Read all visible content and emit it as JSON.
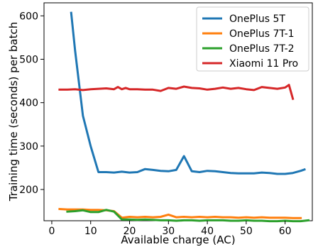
{
  "chart_data": {
    "type": "line",
    "xlabel": "Available charge (AC)",
    "ylabel": "Training time (seconds) per batch",
    "xlim": [
      -2,
      67
    ],
    "ylim": [
      128,
      630
    ],
    "xticks": [
      0,
      10,
      20,
      30,
      40,
      50,
      60
    ],
    "yticks": [
      200,
      300,
      400,
      500,
      600
    ],
    "grid": false,
    "legend_position": "top-right",
    "series": [
      {
        "name": "OnePlus 5T",
        "color": "#1f77b4",
        "x": [
          5,
          6,
          8,
          10,
          12,
          14,
          16,
          18,
          20,
          22,
          24,
          26,
          28,
          30,
          32,
          34,
          36,
          38,
          40,
          42,
          44,
          46,
          48,
          50,
          52,
          54,
          56,
          58,
          60,
          62,
          64,
          65
        ],
        "y": [
          607,
          520,
          370,
          300,
          240,
          240,
          239,
          241,
          239,
          240,
          247,
          245,
          243,
          242,
          245,
          277,
          242,
          240,
          243,
          242,
          240,
          238,
          237,
          237,
          237,
          239,
          238,
          236,
          236,
          238,
          243,
          246
        ]
      },
      {
        "name": "OnePlus 7T-1",
        "color": "#ff7f0e",
        "x": [
          2,
          4,
          6,
          8,
          10,
          12,
          14,
          16,
          18,
          20,
          22,
          24,
          26,
          28,
          30,
          32,
          34,
          36,
          38,
          40,
          42,
          44,
          46,
          48,
          50,
          52,
          54,
          56,
          58,
          60,
          62,
          64
        ],
        "y": [
          155,
          154,
          154,
          154,
          153,
          153,
          152,
          150,
          135,
          137,
          136,
          137,
          136,
          137,
          142,
          136,
          137,
          136,
          137,
          136,
          137,
          136,
          136,
          135,
          136,
          135,
          136,
          135,
          135,
          135,
          134,
          134
        ]
      },
      {
        "name": "OnePlus 7T-2",
        "color": "#2ca02c",
        "x": [
          4,
          6,
          8,
          10,
          12,
          14,
          16,
          17,
          18,
          20,
          22,
          24,
          26,
          28,
          30,
          32,
          34,
          36,
          38,
          40,
          42,
          44,
          46,
          48,
          50,
          52,
          54,
          56,
          58,
          60,
          62,
          64,
          66
        ],
        "y": [
          149,
          150,
          152,
          148,
          148,
          153,
          149,
          140,
          131,
          131,
          130,
          131,
          130,
          129,
          129,
          128,
          129,
          129,
          128,
          129,
          129,
          129,
          128,
          128,
          129,
          128,
          128,
          127,
          127,
          128,
          127,
          127,
          129
        ]
      },
      {
        "name": "Xiaomi 11 Pro",
        "color": "#d62728",
        "x": [
          2,
          4,
          6,
          8,
          10,
          12,
          14,
          16,
          17,
          18,
          19,
          20,
          22,
          24,
          26,
          28,
          30,
          32,
          34,
          36,
          38,
          40,
          42,
          44,
          46,
          48,
          50,
          52,
          54,
          56,
          58,
          60,
          61,
          62
        ],
        "y": [
          430,
          430,
          431,
          429,
          431,
          432,
          433,
          431,
          436,
          431,
          434,
          431,
          431,
          430,
          430,
          427,
          434,
          432,
          437,
          434,
          433,
          430,
          432,
          435,
          432,
          434,
          431,
          429,
          436,
          434,
          432,
          435,
          441,
          409
        ]
      }
    ]
  }
}
